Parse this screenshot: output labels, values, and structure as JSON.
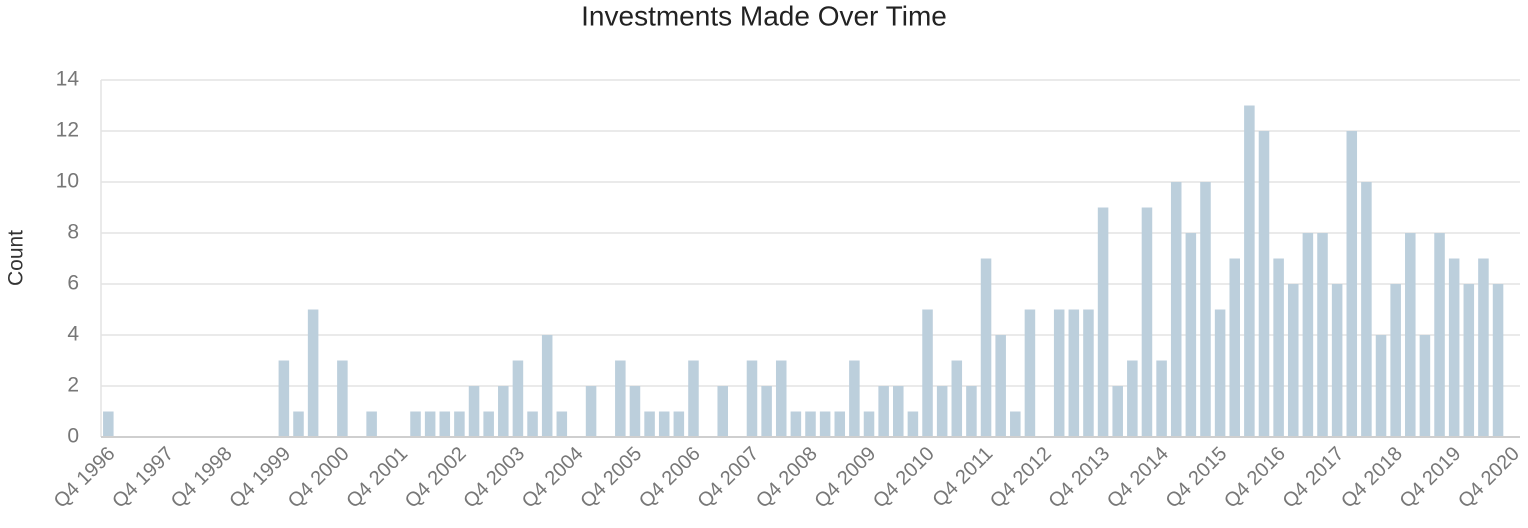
{
  "chart_data": {
    "type": "bar",
    "title": "Investments Made Over Time",
    "y_label": "Count",
    "categories": [
      "Q4 1996",
      null,
      null,
      null,
      "Q4 1997",
      null,
      null,
      null,
      "Q4 1998",
      null,
      null,
      null,
      "Q4 1999",
      null,
      null,
      null,
      "Q4 2000",
      null,
      null,
      null,
      "Q4 2001",
      null,
      null,
      null,
      "Q4 2002",
      null,
      null,
      null,
      "Q4 2003",
      null,
      null,
      null,
      "Q4 2004",
      null,
      null,
      null,
      "Q4 2005",
      null,
      null,
      null,
      "Q4 2006",
      null,
      null,
      null,
      "Q4 2007",
      null,
      null,
      null,
      "Q4 2008",
      null,
      null,
      null,
      "Q4 2009",
      null,
      null,
      null,
      "Q4 2010",
      null,
      null,
      null,
      "Q4 2011",
      null,
      null,
      null,
      "Q4 2012",
      null,
      null,
      null,
      "Q4 2013",
      null,
      null,
      null,
      "Q4 2014",
      null,
      null,
      null,
      "Q4 2015",
      null,
      null,
      null,
      "Q4 2016",
      null,
      null,
      null,
      "Q4 2017",
      null,
      null,
      null,
      "Q4 2018",
      null,
      null,
      null,
      "Q4 2019",
      null,
      null,
      null,
      "Q4 2020"
    ],
    "values": [
      1,
      0,
      0,
      0,
      0,
      0,
      0,
      0,
      0,
      0,
      0,
      0,
      3,
      1,
      5,
      0,
      3,
      0,
      1,
      0,
      0,
      1,
      1,
      1,
      1,
      2,
      1,
      2,
      3,
      1,
      4,
      1,
      0,
      2,
      0,
      3,
      2,
      1,
      1,
      1,
      3,
      0,
      2,
      0,
      3,
      2,
      3,
      1,
      1,
      1,
      1,
      3,
      1,
      2,
      2,
      1,
      5,
      2,
      3,
      2,
      7,
      4,
      1,
      5,
      0,
      5,
      5,
      5,
      9,
      2,
      3,
      9,
      3,
      10,
      8,
      10,
      5,
      7,
      13,
      12,
      7,
      6,
      8,
      8,
      6,
      12,
      10,
      4,
      6,
      8,
      4,
      8,
      7,
      6,
      7,
      6,
      0
    ],
    "color": "#bccfdc",
    "ylim": [
      0,
      14
    ],
    "yticks": [
      0,
      2,
      4,
      6,
      8,
      10,
      12,
      14
    ],
    "grid": true
  }
}
